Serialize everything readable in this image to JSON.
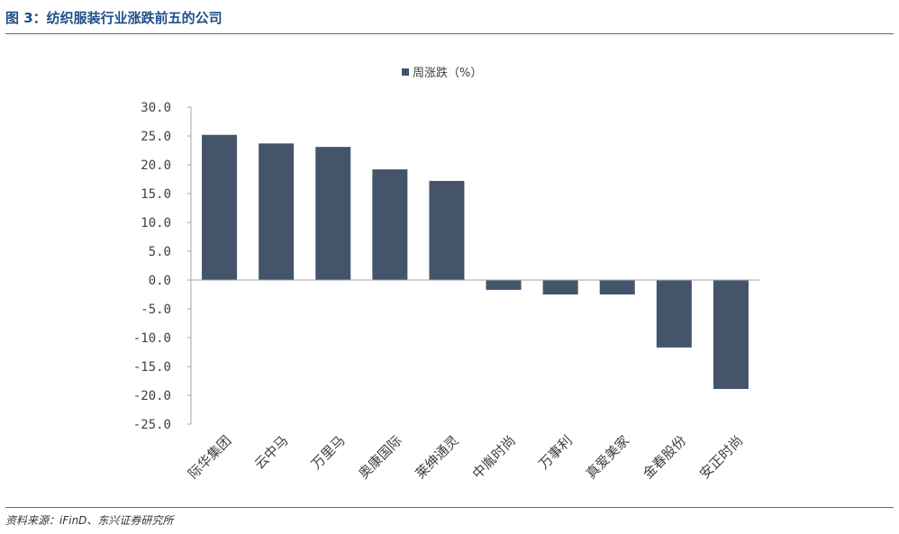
{
  "figure": {
    "title": "图 3：纺织服装行业涨跌前五的公司",
    "source": "资料来源：iFinD、东兴证券研究所"
  },
  "colors": {
    "bar": "#44546a",
    "title": "#1f4e8c",
    "rule": "#4a6f9a",
    "axis": "#a6a6a6",
    "text": "#404040"
  },
  "chart_data": {
    "type": "bar",
    "categories": [
      "际华集团",
      "云中马",
      "万里马",
      "奥康国际",
      "莱绅通灵",
      "中胤时尚",
      "万事利",
      "真爱美家",
      "金春股份",
      "安正时尚"
    ],
    "series": [
      {
        "name": "周涨跌（%）",
        "values": [
          25.2,
          23.7,
          23.1,
          19.2,
          17.2,
          -1.7,
          -2.5,
          -2.5,
          -11.7,
          -18.9
        ]
      }
    ],
    "ylim": [
      -25,
      30
    ],
    "yticks": [
      30,
      25,
      20,
      15,
      10,
      5,
      0,
      -5,
      -10,
      -15,
      -20,
      -25
    ],
    "ytick_labels": [
      "30.0",
      "25.0",
      "20.0",
      "15.0",
      "10.0",
      "5.0",
      "0.0",
      "-5.0",
      "-10.0",
      "-15.0",
      "-20.0",
      "-25.0"
    ],
    "legend_position": "top-center",
    "grid": false
  }
}
